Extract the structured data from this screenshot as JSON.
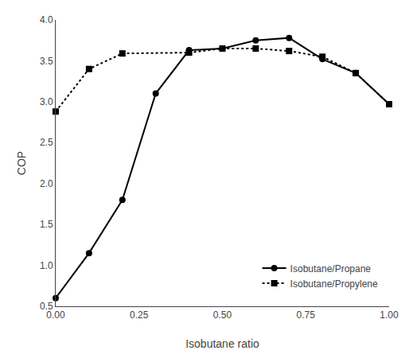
{
  "chart_data": {
    "type": "line",
    "xlabel": "Isobutane ratio",
    "ylabel": "COP",
    "series": [
      {
        "name": "Isobutane/Propane",
        "color": "#000000",
        "marker": "circle",
        "line_style": "solid",
        "x": [
          0.0,
          0.1,
          0.2,
          0.3,
          0.4,
          0.5,
          0.6,
          0.7,
          0.8,
          0.9,
          1.0
        ],
        "values": [
          0.6,
          1.15,
          1.8,
          3.1,
          3.63,
          3.65,
          3.75,
          3.78,
          3.52,
          3.35,
          2.97
        ]
      },
      {
        "name": "Isobutane/Propylene",
        "color": "#000000",
        "marker": "square",
        "line_style": "dotted",
        "x": [
          0.0,
          0.1,
          0.2,
          0.4,
          0.5,
          0.6,
          0.7,
          0.8,
          0.9,
          1.0
        ],
        "values": [
          2.88,
          3.4,
          3.59,
          3.6,
          3.65,
          3.65,
          3.62,
          3.55,
          3.35,
          2.97
        ]
      }
    ],
    "xlim": [
      0.0,
      1.0
    ],
    "ylim": [
      0.5,
      4.0
    ],
    "xticks": [
      {
        "value": 0.0,
        "label": "0.00"
      },
      {
        "value": 0.25,
        "label": "0.25"
      },
      {
        "value": 0.5,
        "label": "0.50"
      },
      {
        "value": 0.75,
        "label": "0.75"
      },
      {
        "value": 1.0,
        "label": "1.00"
      }
    ],
    "yticks": [
      0.5,
      {
        "value": 1.0,
        "label": "1.0"
      },
      1.5,
      {
        "value": 2.0,
        "label": "2.0"
      },
      2.5,
      {
        "value": 3.0,
        "label": "3.0"
      },
      3.5,
      {
        "value": 4.0,
        "label": "4.0"
      }
    ],
    "grid": false,
    "legend": "lower right"
  }
}
